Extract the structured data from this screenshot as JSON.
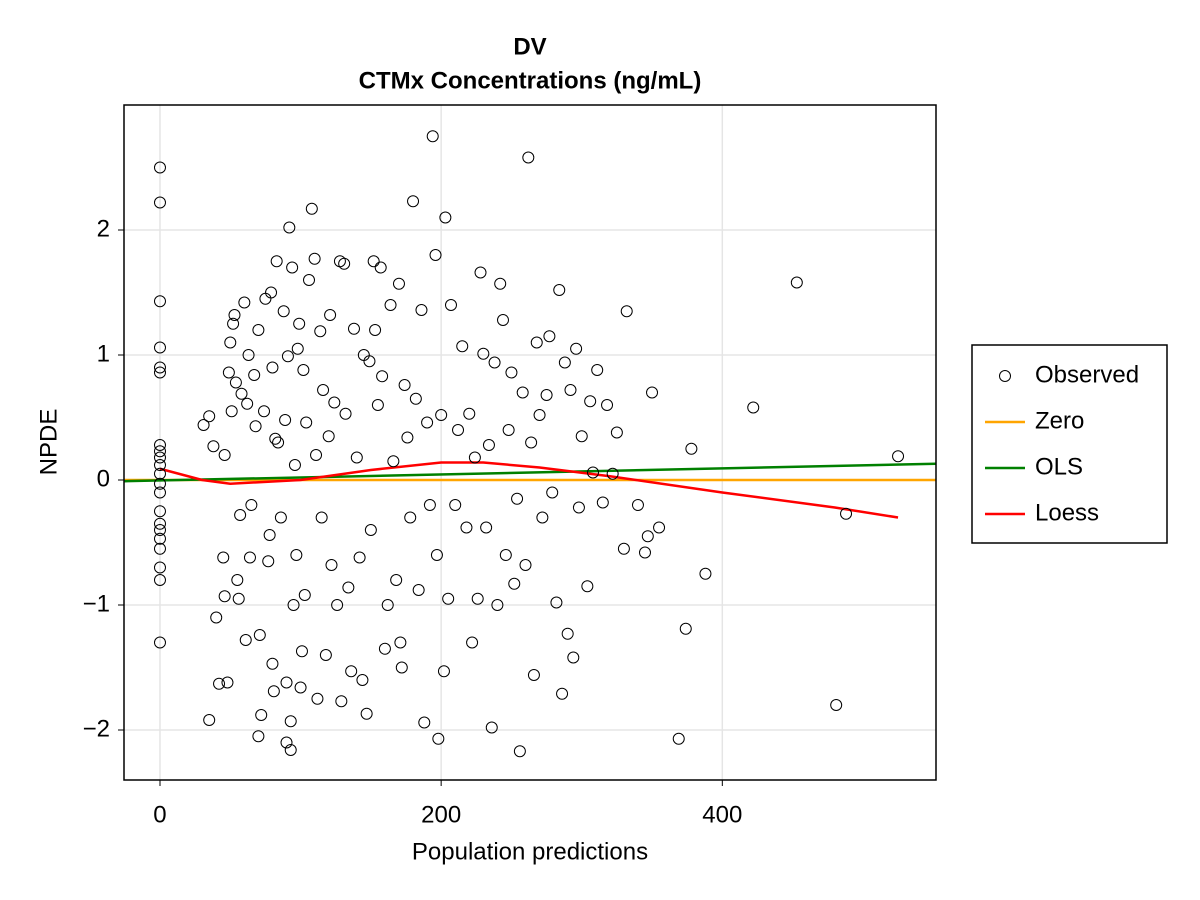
{
  "chart_data": {
    "type": "scatter",
    "title": "DV",
    "subtitle": "CTMx Concentrations (ng/mL)",
    "x_label": "Population predictions",
    "y_label": "NPDE",
    "xlim": [
      -25.6,
      552
    ],
    "ylim": [
      -2.4,
      3.0
    ],
    "xticks": [
      0,
      200,
      400
    ],
    "yticks": [
      {
        "value": -2,
        "label": "−2"
      },
      {
        "value": -1,
        "label": "−1"
      },
      0,
      1,
      2
    ],
    "grid": true,
    "legend": "right",
    "series": [
      {
        "name": "Observed",
        "type": "scatter",
        "color": "#000000",
        "x": [
          0,
          0,
          0,
          0,
          0,
          0,
          0,
          0,
          0,
          0,
          0,
          0,
          0,
          0,
          0,
          0,
          0,
          0,
          0,
          0,
          0,
          31,
          35,
          35,
          38,
          40,
          42,
          45,
          46,
          46,
          48,
          49,
          50,
          51,
          52,
          53,
          54,
          55,
          56,
          57,
          58,
          60,
          61,
          62,
          63,
          64,
          65,
          67,
          68,
          70,
          70,
          71,
          72,
          74,
          75,
          77,
          78,
          79,
          80,
          80,
          81,
          82,
          83,
          84,
          86,
          88,
          89,
          90,
          90,
          91,
          92,
          93,
          93,
          94,
          95,
          96,
          97,
          98,
          99,
          100,
          101,
          102,
          103,
          104,
          106,
          108,
          110,
          111,
          112,
          114,
          115,
          116,
          118,
          120,
          121,
          122,
          124,
          126,
          128,
          129,
          131,
          132,
          134,
          136,
          138,
          140,
          142,
          144,
          145,
          147,
          149,
          150,
          152,
          153,
          155,
          157,
          158,
          160,
          162,
          164,
          166,
          168,
          170,
          171,
          172,
          174,
          176,
          178,
          180,
          182,
          184,
          186,
          188,
          190,
          192,
          194,
          196,
          197,
          198,
          200,
          202,
          203,
          205,
          207,
          210,
          212,
          215,
          218,
          220,
          222,
          224,
          226,
          228,
          230,
          232,
          234,
          236,
          238,
          240,
          242,
          244,
          246,
          248,
          250,
          252,
          254,
          256,
          258,
          260,
          262,
          264,
          266,
          268,
          270,
          272,
          275,
          277,
          279,
          282,
          284,
          286,
          288,
          290,
          292,
          294,
          296,
          298,
          300,
          304,
          306,
          308,
          311,
          315,
          318,
          322,
          325,
          330,
          332,
          340,
          345,
          347,
          350,
          355,
          369,
          374,
          378,
          388,
          422,
          453,
          481,
          488,
          525
        ],
        "values": [
          2.5,
          2.22,
          1.43,
          1.06,
          0.9,
          0.86,
          0.28,
          0.23,
          0.18,
          0.12,
          0.05,
          -0.03,
          -0.1,
          -0.25,
          -0.35,
          -0.4,
          -0.47,
          -0.55,
          -0.7,
          -0.8,
          -1.3,
          0.44,
          0.51,
          -1.92,
          0.27,
          -1.1,
          -1.63,
          -0.62,
          0.2,
          -0.93,
          -1.62,
          0.86,
          1.1,
          0.55,
          1.25,
          1.32,
          0.78,
          -0.8,
          -0.95,
          -0.28,
          0.69,
          1.42,
          -1.28,
          0.61,
          1.0,
          -0.62,
          -0.2,
          0.84,
          0.43,
          1.2,
          -2.05,
          -1.24,
          -1.88,
          0.55,
          1.45,
          -0.65,
          -0.44,
          1.5,
          0.9,
          -1.47,
          -1.69,
          0.33,
          1.75,
          0.3,
          -0.3,
          1.35,
          0.48,
          -1.62,
          -2.1,
          0.99,
          2.02,
          -2.16,
          -1.93,
          1.7,
          -1.0,
          0.12,
          -0.6,
          1.05,
          1.25,
          -1.66,
          -1.37,
          0.88,
          -0.92,
          0.46,
          1.6,
          2.17,
          1.77,
          0.2,
          -1.75,
          1.19,
          -0.3,
          0.72,
          -1.4,
          0.35,
          1.32,
          -0.68,
          0.62,
          -1.0,
          1.75,
          -1.77,
          1.73,
          0.53,
          -0.86,
          -1.53,
          1.21,
          0.18,
          -0.62,
          -1.6,
          1.0,
          -1.87,
          0.95,
          -0.4,
          1.75,
          1.2,
          0.6,
          1.7,
          0.83,
          -1.35,
          -1.0,
          1.4,
          0.15,
          -0.8,
          1.57,
          -1.3,
          -1.5,
          0.76,
          0.34,
          -0.3,
          2.23,
          0.65,
          -0.88,
          1.36,
          -1.94,
          0.46,
          -0.2,
          2.75,
          1.8,
          -0.6,
          -2.07,
          0.52,
          -1.53,
          2.1,
          -0.95,
          1.4,
          -0.2,
          0.4,
          1.07,
          -0.38,
          0.53,
          -1.3,
          0.18,
          -0.95,
          1.66,
          1.01,
          -0.38,
          0.28,
          -1.98,
          0.94,
          -1.0,
          1.57,
          1.28,
          -0.6,
          0.4,
          0.86,
          -0.83,
          -0.15,
          -2.17,
          0.7,
          -0.68,
          2.58,
          0.3,
          -1.56,
          1.1,
          0.52,
          -0.3,
          0.68,
          1.15,
          -0.1,
          -0.98,
          1.52,
          -1.71,
          0.94,
          -1.23,
          0.72,
          -1.42,
          1.05,
          -0.22,
          0.35,
          -0.85,
          0.63,
          0.06,
          0.88,
          -0.18,
          0.6,
          0.05,
          0.38,
          -0.55,
          1.35,
          -0.2,
          -0.58,
          -0.45,
          0.7,
          -0.38,
          -2.07,
          -1.19,
          0.25,
          -0.75,
          0.58,
          1.58,
          -1.8,
          -0.27,
          0.19
        ]
      },
      {
        "name": "Zero",
        "type": "line",
        "color": "#ffa500",
        "x": [
          -25.6,
          552
        ],
        "values": [
          0,
          0
        ]
      },
      {
        "name": "OLS",
        "type": "line",
        "color": "#008000",
        "x": [
          -25.6,
          552
        ],
        "values": [
          -0.01,
          0.13
        ]
      },
      {
        "name": "Loess",
        "type": "line",
        "color": "#ff0000",
        "x": [
          0,
          30,
          50,
          100,
          150,
          200,
          230,
          270,
          320,
          400,
          480,
          525
        ],
        "values": [
          0.09,
          0.0,
          -0.03,
          0.0,
          0.08,
          0.14,
          0.14,
          0.1,
          0.03,
          -0.1,
          -0.22,
          -0.3
        ]
      }
    ]
  }
}
